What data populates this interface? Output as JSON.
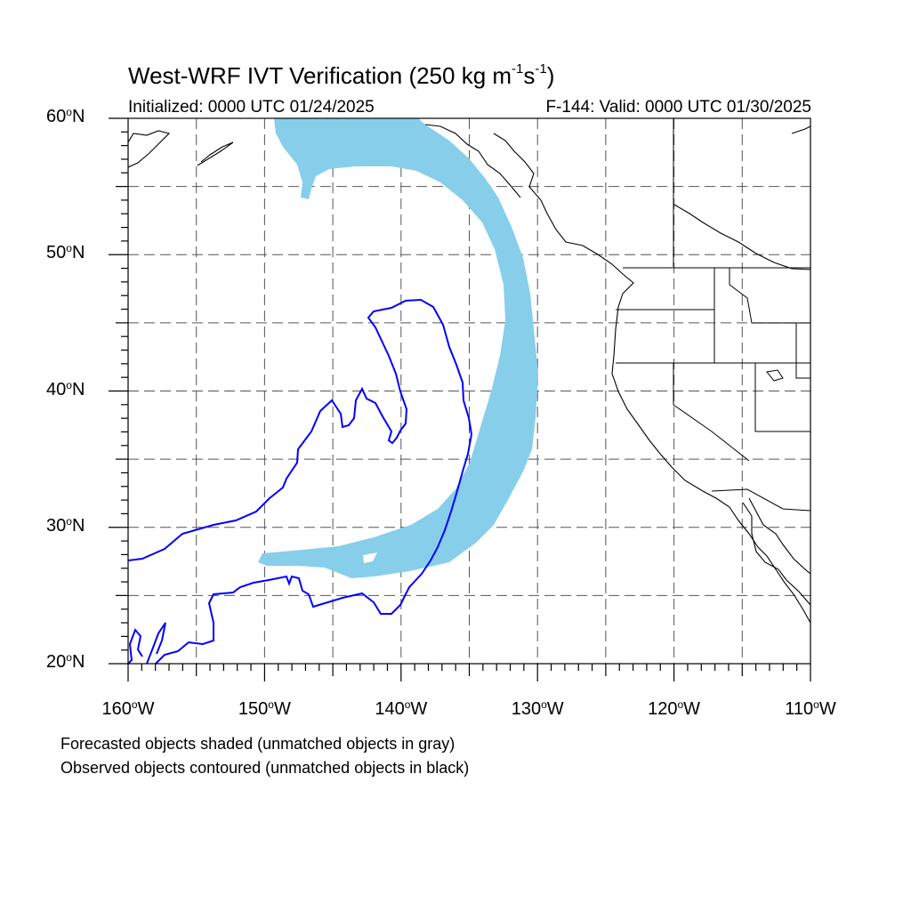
{
  "title": {
    "main_prefix": "West-WRF IVT Verification (250 kg m",
    "exp1": "-1",
    "mid": "s",
    "exp2": "-1",
    "suffix": ")"
  },
  "subtitle_left": "Initialized: 0000 UTC 01/24/2025",
  "subtitle_right": "F-144: Valid: 0000 UTC 01/30/2025",
  "lat_labels": [
    {
      "value": "60",
      "suffix": "N"
    },
    {
      "value": "50",
      "suffix": "N"
    },
    {
      "value": "40",
      "suffix": "N"
    },
    {
      "value": "30",
      "suffix": "N"
    },
    {
      "value": "20",
      "suffix": "N"
    }
  ],
  "lon_labels": [
    {
      "value": "160",
      "suffix": "W"
    },
    {
      "value": "150",
      "suffix": "W"
    },
    {
      "value": "140",
      "suffix": "W"
    },
    {
      "value": "130",
      "suffix": "W"
    },
    {
      "value": "120",
      "suffix": "W"
    },
    {
      "value": "110",
      "suffix": "W"
    }
  ],
  "degree_symbol": "o",
  "legend": {
    "line1": "Forecasted objects shaded (unmatched objects in gray)",
    "line2": "Observed objects contoured (unmatched objects in black)"
  },
  "map_extent": {
    "lon": [
      -160,
      -110
    ],
    "lat": [
      20,
      60
    ]
  },
  "grid": {
    "dashed": true,
    "spacing_deg": 5
  },
  "colors": {
    "forecast_fill": "#87ceeb",
    "observed_contour": "#0000ff",
    "coastline": "#000000",
    "grid": "#555555"
  }
}
